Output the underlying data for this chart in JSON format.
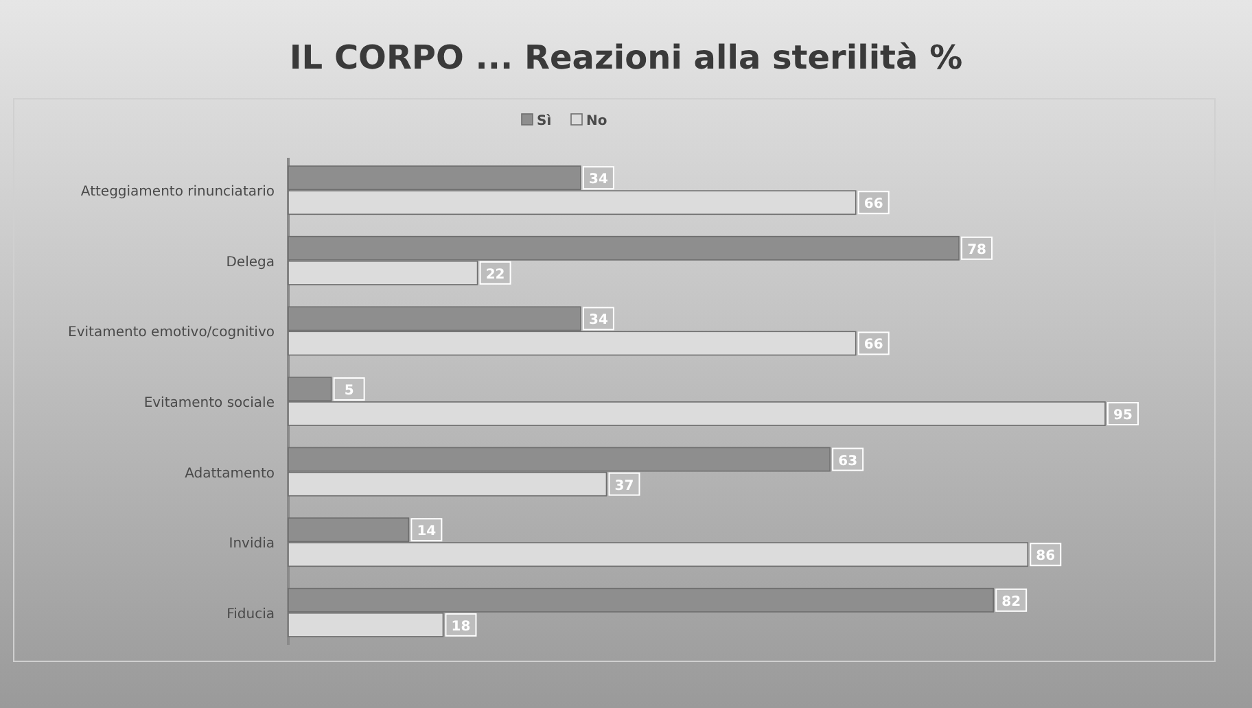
{
  "chart_data": {
    "type": "bar",
    "orientation": "horizontal",
    "title": "IL CORPO ... Reazioni alla sterilità %",
    "categories": [
      "Atteggiamento rinunciatario",
      "Delega",
      "Evitamento emotivo/cognitivo",
      "Evitamento sociale",
      "Adattamento",
      "Invidia",
      "Fiducia"
    ],
    "series": [
      {
        "name": "Sì",
        "color": "#8e8e8e",
        "values": [
          34,
          78,
          34,
          5,
          63,
          14,
          82
        ]
      },
      {
        "name": "No",
        "color": "#dcdcdc",
        "values": [
          66,
          22,
          66,
          95,
          37,
          86,
          18
        ]
      }
    ],
    "data_labels": true,
    "legend": "top",
    "grid": false
  }
}
